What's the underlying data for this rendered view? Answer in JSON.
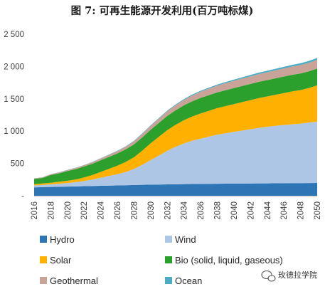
{
  "chart_data": {
    "type": "area",
    "stacked": true,
    "title": "图 7: 可再生能源开发利用(百万吨标煤)",
    "xlabel": "",
    "ylabel": "",
    "ylim": [
      0,
      2500
    ],
    "y_ticks": [
      "-",
      "500",
      "1 000",
      "1 500",
      "2 000",
      "2 500"
    ],
    "x": [
      2016,
      2017,
      2018,
      2019,
      2020,
      2021,
      2022,
      2023,
      2024,
      2025,
      2026,
      2027,
      2028,
      2029,
      2030,
      2031,
      2032,
      2033,
      2034,
      2035,
      2036,
      2037,
      2038,
      2039,
      2040,
      2041,
      2042,
      2043,
      2044,
      2045,
      2046,
      2047,
      2048,
      2049,
      2050
    ],
    "x_tick_labels": [
      "2016",
      "2018",
      "2020",
      "2022",
      "2024",
      "2026",
      "2028",
      "2030",
      "2032",
      "2034",
      "2036",
      "2038",
      "2040",
      "2042",
      "2044",
      "2046",
      "2048",
      "2050"
    ],
    "grid": false,
    "legend_position": "bottom",
    "series": [
      {
        "name": "Hydro",
        "color": "#2e75b6",
        "values": [
          130,
          133,
          136,
          139,
          142,
          145,
          148,
          151,
          154,
          157,
          160,
          163,
          166,
          169,
          172,
          174,
          176,
          178,
          180,
          182,
          184,
          185,
          186,
          187,
          188,
          189,
          190,
          191,
          192,
          193,
          194,
          195,
          196,
          197,
          198
        ]
      },
      {
        "name": "Wind",
        "color": "#aec6e5",
        "values": [
          30,
          35,
          40,
          48,
          55,
          65,
          80,
          100,
          125,
          150,
          175,
          205,
          250,
          310,
          380,
          450,
          520,
          580,
          630,
          670,
          700,
          730,
          760,
          780,
          800,
          820,
          840,
          860,
          875,
          890,
          900,
          910,
          920,
          935,
          950
        ]
      },
      {
        "name": "Solar",
        "color": "#ffb000",
        "values": [
          20,
          22,
          25,
          30,
          35,
          42,
          55,
          70,
          90,
          110,
          130,
          155,
          180,
          220,
          260,
          290,
          320,
          340,
          360,
          375,
          390,
          400,
          410,
          420,
          430,
          440,
          450,
          460,
          470,
          480,
          495,
          510,
          520,
          535,
          560
        ]
      },
      {
        "name": "Bio (solid, liquid, gaseous)",
        "color": "#2ca02c",
        "values": [
          80,
          85,
          120,
          130,
          150,
          160,
          170,
          175,
          180,
          185,
          190,
          195,
          200,
          205,
          210,
          215,
          220,
          225,
          230,
          235,
          240,
          242,
          244,
          246,
          248,
          250,
          250,
          252,
          252,
          254,
          255,
          256,
          257,
          258,
          260
        ]
      },
      {
        "name": "Geothermal",
        "color": "#c9a398",
        "values": [
          8,
          10,
          12,
          14,
          16,
          18,
          20,
          24,
          28,
          32,
          36,
          42,
          48,
          54,
          60,
          66,
          72,
          78,
          84,
          90,
          96,
          100,
          104,
          108,
          112,
          115,
          118,
          120,
          122,
          124,
          126,
          128,
          130,
          132,
          135
        ]
      },
      {
        "name": "Ocean",
        "color": "#4bacc6",
        "values": [
          2,
          2,
          2,
          2,
          3,
          3,
          3,
          4,
          4,
          5,
          5,
          6,
          7,
          8,
          9,
          10,
          11,
          12,
          13,
          14,
          15,
          16,
          17,
          18,
          19,
          20,
          21,
          22,
          23,
          24,
          25,
          26,
          27,
          28,
          30
        ]
      }
    ]
  },
  "watermark": {
    "text": "玫德拉学院",
    "icon": "wechat-bubble-icon"
  }
}
